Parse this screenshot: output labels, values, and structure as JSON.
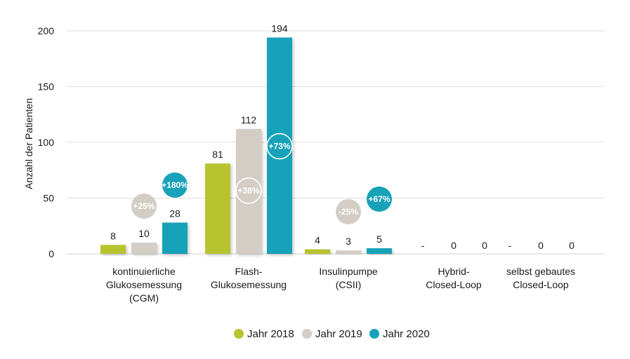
{
  "chart_data": {
    "type": "bar",
    "ylabel": "Anzahl der Patienten",
    "ylim": [
      0,
      200
    ],
    "yticks": [
      "0",
      "50",
      "100",
      "150",
      "200"
    ],
    "grid": true,
    "legend_position": "bottom",
    "categories": [
      [
        "kontinuierliche",
        "Glukosemessung",
        "(CGM)"
      ],
      [
        "Flash-",
        "Glukosemessung"
      ],
      [
        "Insulinpumpe",
        "(CSII)"
      ],
      [
        "Hybrid-",
        "Closed-Loop"
      ],
      [
        "selbst gebautes",
        "Closed-Loop"
      ]
    ],
    "series": [
      {
        "name": "Jahr 2018",
        "color": "#b7c42f",
        "values": [
          8,
          81,
          4,
          null,
          null
        ],
        "labels": [
          "8",
          "81",
          "4",
          "-",
          "-"
        ]
      },
      {
        "name": "Jahr 2019",
        "color": "#d3cdc5",
        "values": [
          10,
          112,
          3,
          0,
          0
        ],
        "labels": [
          "10",
          "112",
          "3",
          "0",
          "0"
        ]
      },
      {
        "name": "Jahr 2020",
        "color": "#17a2b8",
        "values": [
          28,
          194,
          5,
          0,
          0
        ],
        "labels": [
          "28",
          "194",
          "5",
          "0",
          "0"
        ]
      }
    ],
    "annotations": [
      {
        "category": 0,
        "series": 1,
        "text": "+25%",
        "color": "#d3cdc5",
        "style": "floating"
      },
      {
        "category": 0,
        "series": 2,
        "text": "+180%",
        "color": "#17a2b8",
        "style": "floating"
      },
      {
        "category": 1,
        "series": 1,
        "text": "+38%",
        "color": "#d3cdc5",
        "style": "on-bar"
      },
      {
        "category": 1,
        "series": 2,
        "text": "+73%",
        "color": "#17a2b8",
        "style": "on-bar"
      },
      {
        "category": 2,
        "series": 1,
        "text": "-25%",
        "color": "#d3cdc5",
        "style": "floating"
      },
      {
        "category": 2,
        "series": 2,
        "text": "+67%",
        "color": "#17a2b8",
        "style": "floating"
      }
    ]
  }
}
